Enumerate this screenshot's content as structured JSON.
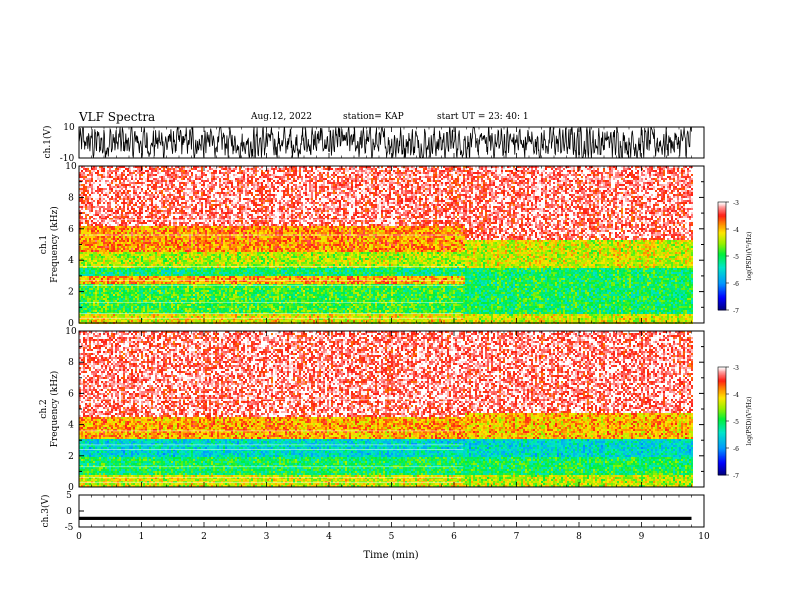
{
  "header": {
    "title": "VLF Spectra",
    "date": "Aug.12, 2022",
    "station": "station= KAP",
    "start_ut": "start  UT  =   23: 40: 1"
  },
  "chart_data": [
    {
      "type": "line",
      "panel": "ch1-waveform",
      "ylabel": "ch.1(V)",
      "ylim": [
        -10,
        10
      ],
      "yticks": [
        "10",
        "-10"
      ],
      "xlim": [
        0,
        10
      ],
      "series": [
        {
          "description_values": "noisy waveform spanning approx -10 to 10 V over 0 to 9.8 min"
        }
      ]
    },
    {
      "type": "heatmap",
      "panel": "ch1-spectrogram",
      "ylabel": "ch.1\nFrequency (kHz)",
      "ylim": [
        0,
        10
      ],
      "yticks": [
        "0",
        "2",
        "4",
        "6",
        "8",
        "10"
      ],
      "xlim": [
        0,
        10
      ],
      "data_x_end_min": 9.8,
      "regime_change_min": 6.15,
      "bands_kHz_before_change": [
        {
          "from": 0,
          "to": 0.6,
          "level": -4.2
        },
        {
          "from": 0.6,
          "to": 2.5,
          "level": -4.8
        },
        {
          "from": 2.5,
          "to": 3.0,
          "level": -3.9
        },
        {
          "from": 3.0,
          "to": 3.6,
          "level": -5.1
        },
        {
          "from": 3.6,
          "to": 4.6,
          "level": -4.4
        },
        {
          "from": 4.6,
          "to": 6.2,
          "level": -3.8
        },
        {
          "from": 6.2,
          "to": 10,
          "level": -3.2
        }
      ],
      "bands_kHz_after_change": [
        {
          "from": 0,
          "to": 0.6,
          "level": -4.3
        },
        {
          "from": 0.6,
          "to": 3.6,
          "level": -5.0
        },
        {
          "from": 3.6,
          "to": 5.4,
          "level": -4.3
        },
        {
          "from": 5.4,
          "to": 10,
          "level": -3.2
        }
      ],
      "colorbar": {
        "label": "log(PSD)(V²/Hz)",
        "range": [
          -7,
          -3
        ],
        "ticks": [
          "-3",
          "-4",
          "-5",
          "-6",
          "-7"
        ]
      }
    },
    {
      "type": "heatmap",
      "panel": "ch2-spectrogram",
      "ylabel": "ch.2\nFrequency (kHz)",
      "ylim": [
        0,
        10
      ],
      "yticks": [
        "0",
        "2",
        "4",
        "6",
        "8",
        "10"
      ],
      "xlim": [
        0,
        10
      ],
      "data_x_end_min": 9.8,
      "regime_change_min": 6.15,
      "bands_kHz_before_change": [
        {
          "from": 0,
          "to": 0.8,
          "level": -4.3
        },
        {
          "from": 0.8,
          "to": 2.0,
          "level": -5.0
        },
        {
          "from": 2.0,
          "to": 3.2,
          "level": -5.5
        },
        {
          "from": 3.2,
          "to": 4.6,
          "level": -3.9
        },
        {
          "from": 4.6,
          "to": 10,
          "level": -3.2
        }
      ],
      "bands_kHz_after_change": [
        {
          "from": 0,
          "to": 0.8,
          "level": -4.4
        },
        {
          "from": 0.8,
          "to": 2.0,
          "level": -5.0
        },
        {
          "from": 2.0,
          "to": 3.2,
          "level": -5.5
        },
        {
          "from": 3.2,
          "to": 4.8,
          "level": -4.0
        },
        {
          "from": 4.8,
          "to": 10,
          "level": -3.2
        }
      ],
      "colorbar": {
        "label": "log(PSD)(V²/Hz)",
        "range": [
          -7,
          -3
        ],
        "ticks": [
          "-3",
          "-4",
          "-5",
          "-6",
          "-7"
        ]
      }
    },
    {
      "type": "line",
      "panel": "ch3-signal",
      "ylabel": "ch.3(V)",
      "ylim": [
        -5,
        5
      ],
      "yticks": [
        "5",
        "0",
        "-5"
      ],
      "xlabel": "Time (min)",
      "xlim": [
        0,
        10
      ],
      "xticks": [
        "0",
        "1",
        "2",
        "3",
        "4",
        "5",
        "6",
        "7",
        "8",
        "9",
        "10"
      ],
      "series": [
        {
          "constant_value_V": -2.3,
          "thickness_V": 1.0,
          "x_end_min": 9.8
        }
      ]
    }
  ]
}
